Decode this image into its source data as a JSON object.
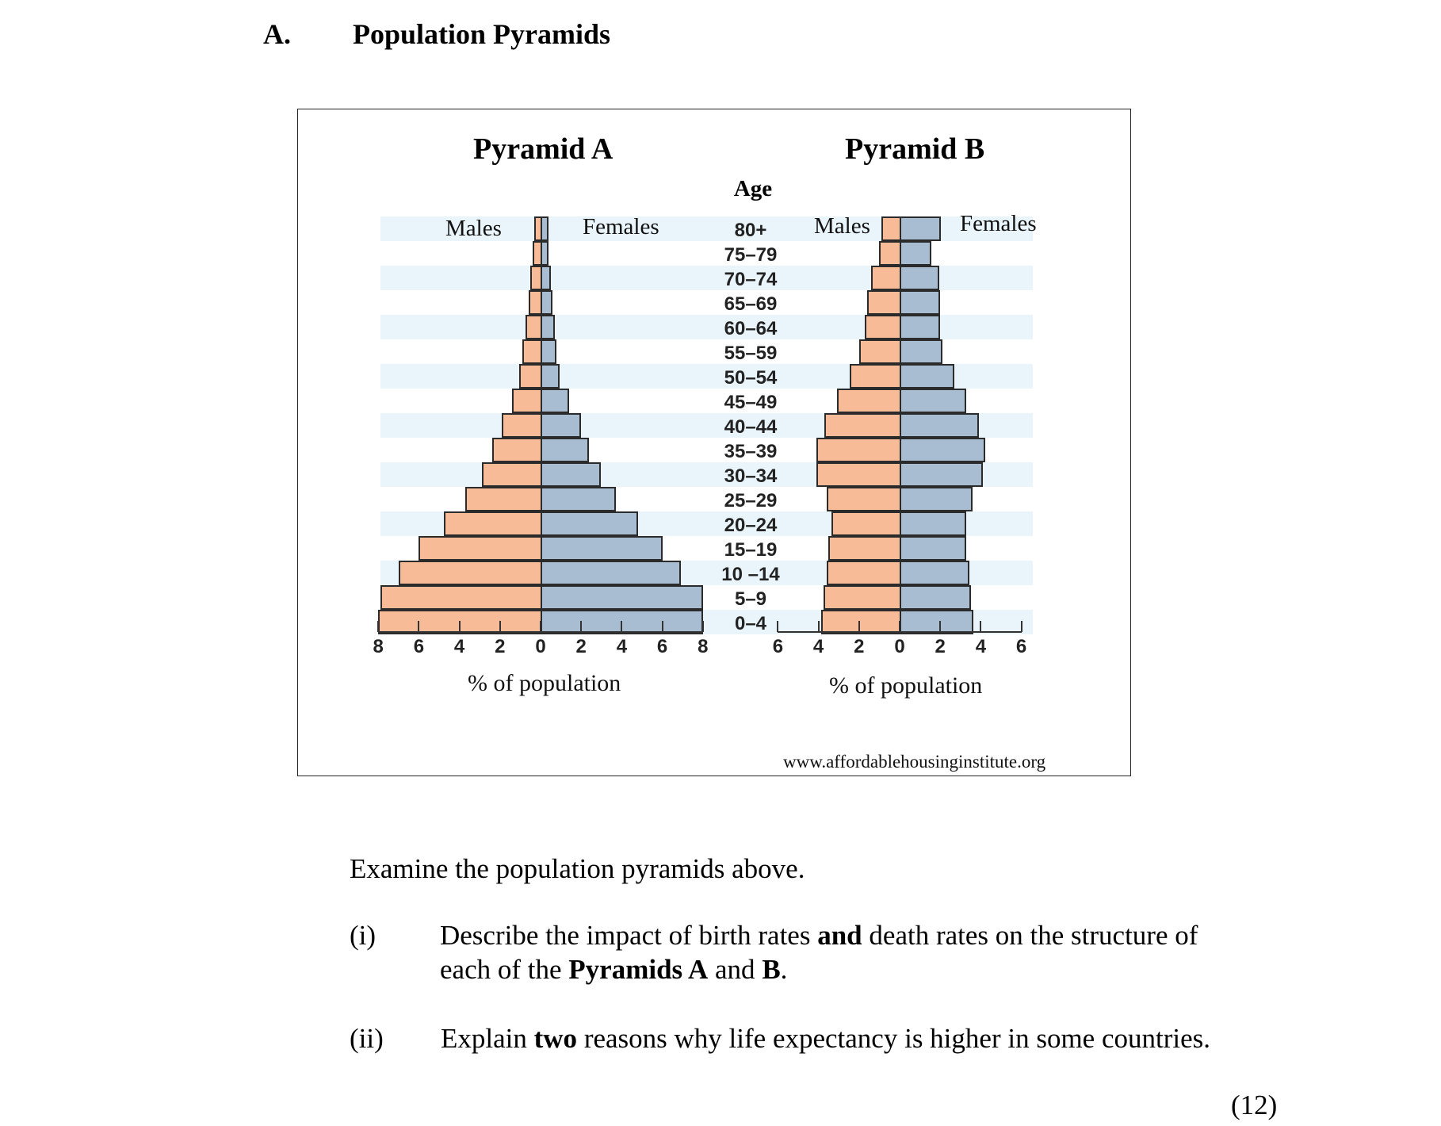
{
  "section": {
    "letter": "A.",
    "title": "Population Pyramids"
  },
  "figure": {
    "age_heading": "Age",
    "age_groups": [
      "80+",
      "75–79",
      "70–74",
      "65–69",
      "60–64",
      "55–59",
      "50–54",
      "45–49",
      "40–44",
      "35–39",
      "30–34",
      "25–29",
      "20–24",
      "15–19",
      "10 –14",
      "5–9",
      "0–4"
    ],
    "pyramid_a": {
      "title": "Pyramid A",
      "males_label": "Males",
      "females_label": "Females",
      "xlabel": "% of population",
      "ticks": [
        "8",
        "6",
        "4",
        "2",
        "0",
        "2",
        "4",
        "6",
        "8"
      ]
    },
    "pyramid_b": {
      "title": "Pyramid B",
      "males_label": "Males",
      "females_label": "Females",
      "xlabel": "% of population",
      "ticks": [
        "6",
        "4",
        "2",
        "0",
        "2",
        "4",
        "6"
      ]
    },
    "source": "www.affordablehousinginstitute.org",
    "colors": {
      "male": "#f8bb97",
      "female": "#a8bdd1",
      "band": "#e9f5fb",
      "outline": "#2b2b2b"
    }
  },
  "chart_data": [
    {
      "type": "bar",
      "orientation": "horizontal-pyramid",
      "title": "Pyramid A",
      "categories": [
        "80+",
        "75-79",
        "70-74",
        "65-69",
        "60-64",
        "55-59",
        "50-54",
        "45-49",
        "40-44",
        "35-39",
        "30-34",
        "25-29",
        "20-24",
        "15-19",
        "10-14",
        "5-9",
        "0-4"
      ],
      "series": [
        {
          "name": "Males",
          "values": [
            0.3,
            0.4,
            0.5,
            0.6,
            0.75,
            0.9,
            1.05,
            1.4,
            1.9,
            2.4,
            2.9,
            3.7,
            4.75,
            6.0,
            7.0,
            7.9,
            8.0
          ]
        },
        {
          "name": "Females",
          "values": [
            0.4,
            0.4,
            0.5,
            0.6,
            0.7,
            0.8,
            0.95,
            1.4,
            2.0,
            2.4,
            2.95,
            3.7,
            4.8,
            6.0,
            6.9,
            8.0,
            8.0
          ]
        }
      ],
      "xlabel": "% of population",
      "ylabel": "Age",
      "xlim": [
        -8,
        8
      ],
      "xticks": [
        8,
        6,
        4,
        2,
        0,
        2,
        4,
        6,
        8
      ],
      "legend": [
        "Males (left)",
        "Females (right)"
      ],
      "grid": "alternating horizontal bands"
    },
    {
      "type": "bar",
      "orientation": "horizontal-pyramid",
      "title": "Pyramid B",
      "categories": [
        "80+",
        "75-79",
        "70-74",
        "65-69",
        "60-64",
        "55-59",
        "50-54",
        "45-49",
        "40-44",
        "35-39",
        "30-34",
        "25-29",
        "20-24",
        "15-19",
        "10-14",
        "5-9",
        "0-4"
      ],
      "series": [
        {
          "name": "Males",
          "values": [
            0.9,
            1.0,
            1.4,
            1.6,
            1.7,
            2.0,
            2.45,
            3.1,
            3.7,
            4.1,
            4.1,
            3.6,
            3.35,
            3.5,
            3.6,
            3.75,
            3.85
          ]
        },
        {
          "name": "Females",
          "values": [
            2.05,
            1.55,
            1.95,
            2.0,
            2.0,
            2.1,
            2.7,
            3.3,
            3.9,
            4.2,
            4.1,
            3.6,
            3.3,
            3.3,
            3.45,
            3.5,
            3.65
          ]
        }
      ],
      "xlabel": "% of population",
      "ylabel": "Age",
      "xlim": [
        -6,
        6
      ],
      "xticks": [
        6,
        4,
        2,
        0,
        2,
        4,
        6
      ],
      "legend": [
        "Males (left)",
        "Females (right)"
      ],
      "grid": "alternating horizontal bands"
    }
  ],
  "questions": {
    "intro": "Examine the population pyramids above.",
    "q1": {
      "num": "(i)",
      "parts": [
        "Describe the impact of birth rates ",
        "and",
        " death rates on the structure of"
      ],
      "line2": [
        "each of the ",
        "Pyramids A",
        " and ",
        "B",
        "."
      ]
    },
    "q2": {
      "num": "(ii)",
      "parts": [
        "Explain ",
        "two",
        " reasons why life expectancy is higher in some countries."
      ]
    },
    "marks": "(12)"
  }
}
